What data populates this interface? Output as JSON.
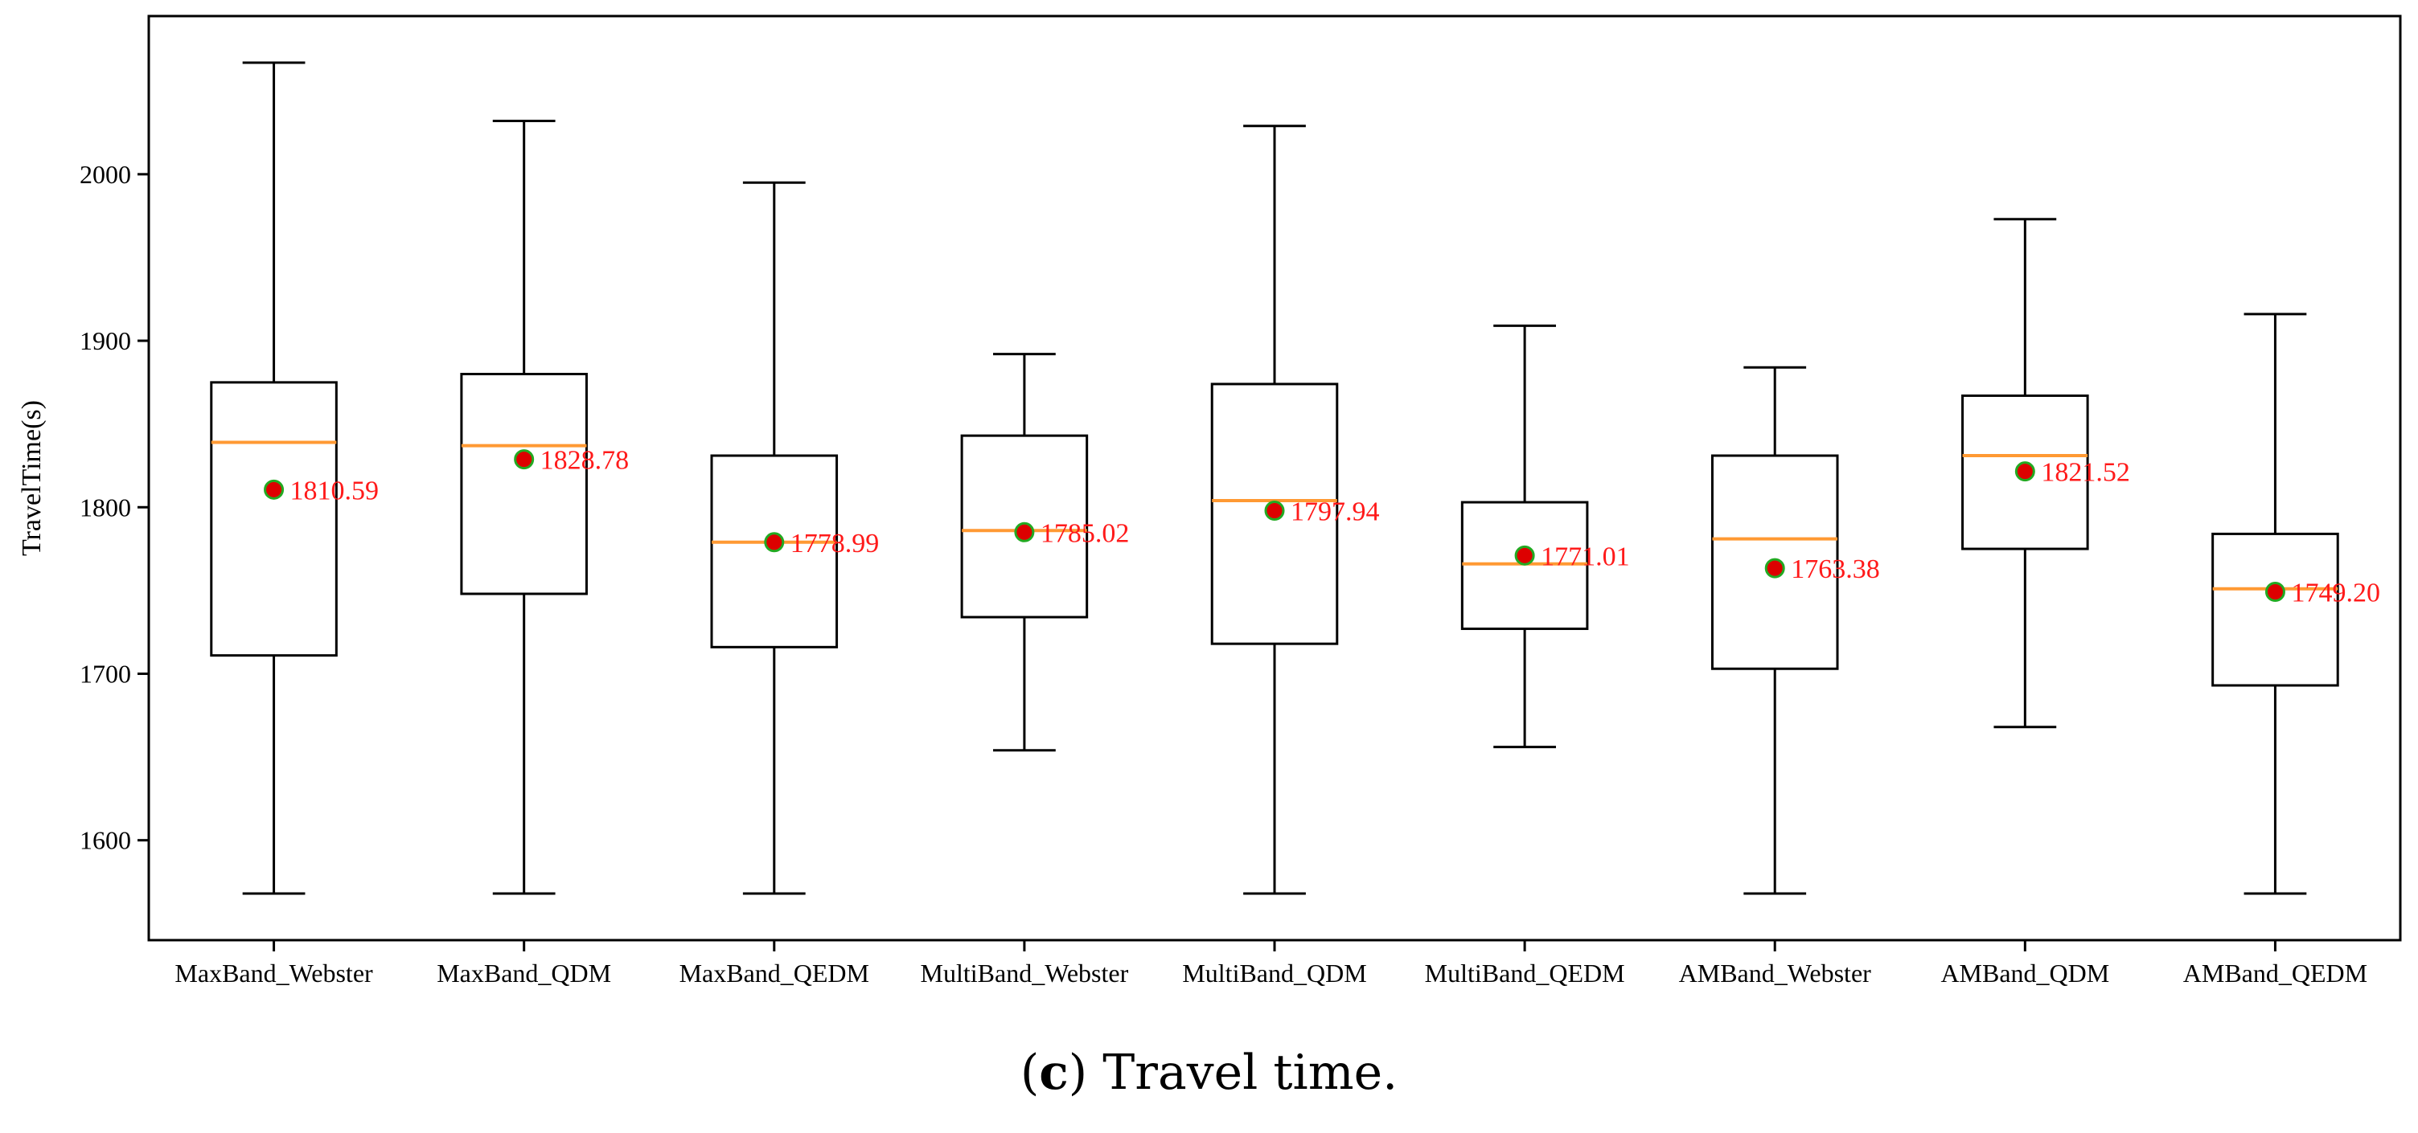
{
  "caption": {
    "letter": "c",
    "text": "Travel time."
  },
  "chart_data": {
    "type": "box",
    "ylabel": "TravelTime(s)",
    "xlabel": "",
    "ylim": [
      1540,
      2095
    ],
    "yticks": [
      1600,
      1700,
      1800,
      1900,
      2000
    ],
    "grid": false,
    "colors": {
      "box": "#000000",
      "median": "#ff9933",
      "mean_fill": "#dd0000",
      "mean_edge": "#22aa22",
      "mean_label": "#ff1a1a"
    },
    "categories": [
      "MaxBand_Webster",
      "MaxBand_QDM",
      "MaxBand_QEDM",
      "MultiBand_Webster",
      "MultiBand_QDM",
      "MultiBand_QEDM",
      "AMBand_Webster",
      "AMBand_QDM",
      "AMBand_QEDM"
    ],
    "boxes": [
      {
        "whisker_low": 1568,
        "q1": 1711,
        "median": 1839,
        "q3": 1875,
        "whisker_high": 2067,
        "mean": 1810.59,
        "mean_label": "1810.59"
      },
      {
        "whisker_low": 1568,
        "q1": 1748,
        "median": 1837,
        "q3": 1880,
        "whisker_high": 2032,
        "mean": 1828.78,
        "mean_label": "1828.78"
      },
      {
        "whisker_low": 1568,
        "q1": 1716,
        "median": 1779,
        "q3": 1831,
        "whisker_high": 1995,
        "mean": 1778.99,
        "mean_label": "1778.99"
      },
      {
        "whisker_low": 1654,
        "q1": 1734,
        "median": 1786,
        "q3": 1843,
        "whisker_high": 1892,
        "mean": 1785.02,
        "mean_label": "1785.02"
      },
      {
        "whisker_low": 1568,
        "q1": 1718,
        "median": 1804,
        "q3": 1874,
        "whisker_high": 2029,
        "mean": 1797.94,
        "mean_label": "1797.94"
      },
      {
        "whisker_low": 1656,
        "q1": 1727,
        "median": 1766,
        "q3": 1803,
        "whisker_high": 1909,
        "mean": 1771.01,
        "mean_label": "1771.01"
      },
      {
        "whisker_low": 1568,
        "q1": 1703,
        "median": 1781,
        "q3": 1831,
        "whisker_high": 1884,
        "mean": 1763.38,
        "mean_label": "1763.38"
      },
      {
        "whisker_low": 1668,
        "q1": 1775,
        "median": 1831,
        "q3": 1867,
        "whisker_high": 1973,
        "mean": 1821.52,
        "mean_label": "1821.52"
      },
      {
        "whisker_low": 1568,
        "q1": 1693,
        "median": 1751,
        "q3": 1784,
        "whisker_high": 1916,
        "mean": 1749.2,
        "mean_label": "1749.20"
      }
    ]
  }
}
